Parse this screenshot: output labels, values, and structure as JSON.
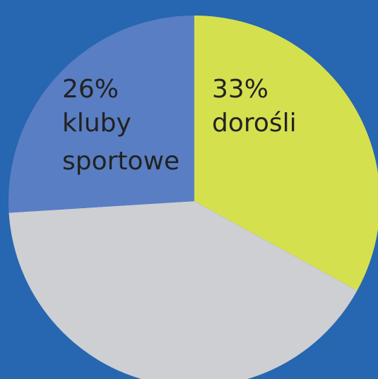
{
  "chart_data": {
    "type": "pie",
    "categories": [
      "dorośli",
      null,
      "kluby sportowe"
    ],
    "values": [
      33,
      41,
      26
    ],
    "value_labels": [
      "33%",
      null,
      "26%"
    ],
    "colors": [
      "#d5e04f",
      "#cdcfd2",
      "#5a7ec3"
    ]
  }
}
